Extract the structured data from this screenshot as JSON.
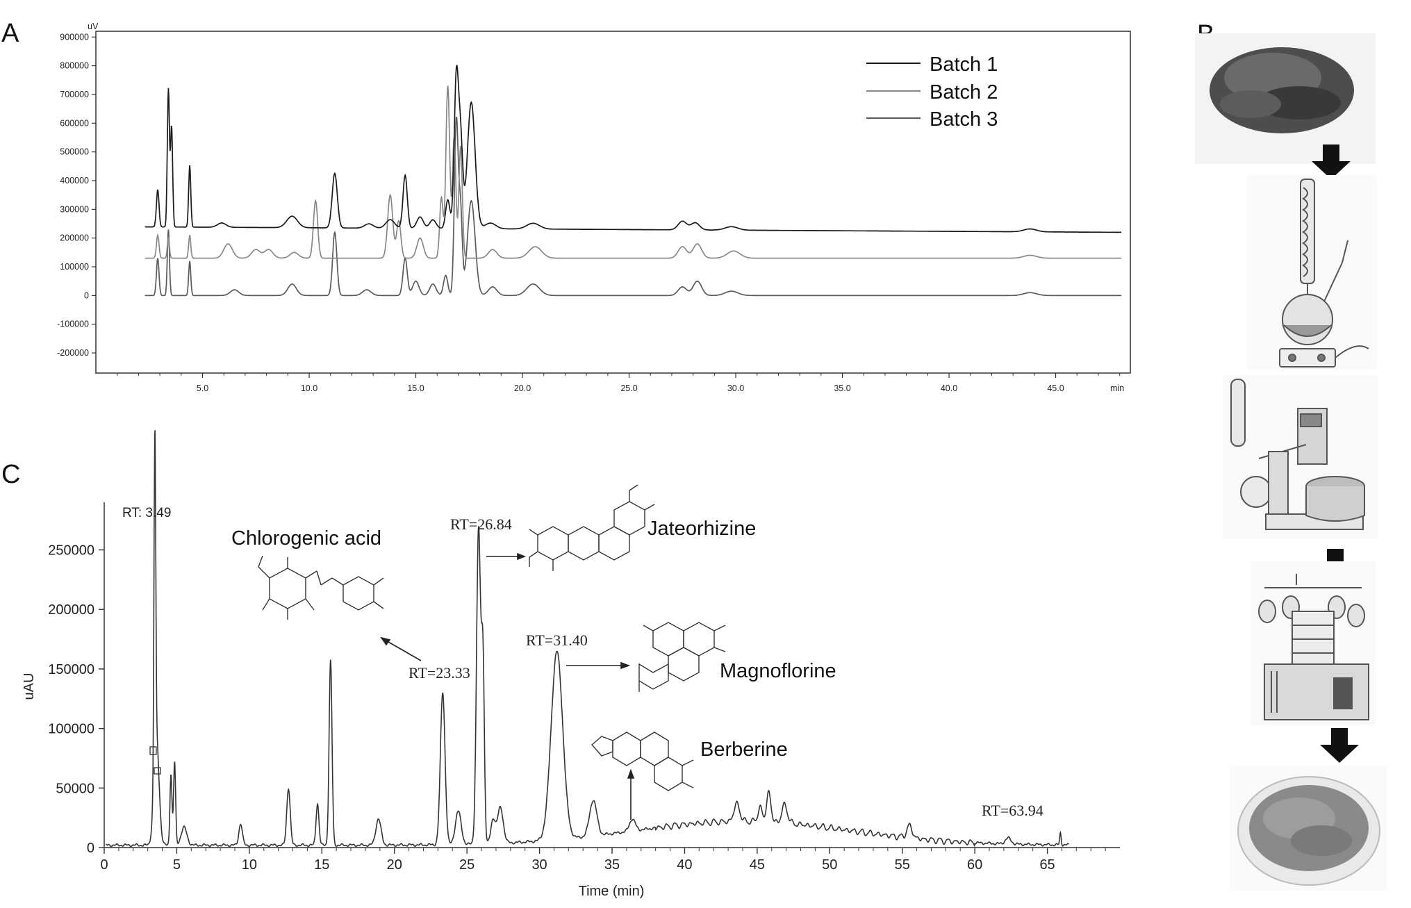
{
  "panels": {
    "a": "A",
    "b": "B",
    "c": "C"
  },
  "chart_data": [
    {
      "type": "line",
      "panel": "A",
      "y_unit": "uV",
      "x_unit": "min",
      "xlim": [
        0,
        48.5
      ],
      "ylim": [
        -270000,
        920000
      ],
      "x_ticks": [
        "5.0",
        "10.0",
        "15.0",
        "20.0",
        "25.0",
        "30.0",
        "35.0",
        "40.0",
        "45.0"
      ],
      "x_tick_values": [
        5,
        10,
        15,
        20,
        25,
        30,
        35,
        40,
        45
      ],
      "y_ticks": [
        "900000",
        "800000",
        "700000",
        "600000",
        "500000",
        "400000",
        "300000",
        "200000",
        "100000",
        "0",
        "-100000",
        "-200000"
      ],
      "y_tick_values": [
        900000,
        800000,
        700000,
        600000,
        500000,
        400000,
        300000,
        200000,
        100000,
        0,
        -100000,
        -200000
      ],
      "series": [
        {
          "name": "Batch 1",
          "color": "#1a1a1a",
          "baseline": 240000,
          "peaks": [
            [
              2.9,
              130000,
              0.06
            ],
            [
              3.4,
              480000,
              0.05
            ],
            [
              3.55,
              350000,
              0.05
            ],
            [
              4.4,
              215000,
              0.05
            ],
            [
              5.9,
              15000,
              0.2
            ],
            [
              9.2,
              40000,
              0.25
            ],
            [
              11.2,
              190000,
              0.12
            ],
            [
              12.8,
              15000,
              0.2
            ],
            [
              13.8,
              30000,
              0.2
            ],
            [
              14.5,
              185000,
              0.1
            ],
            [
              15.2,
              40000,
              0.15
            ],
            [
              15.8,
              30000,
              0.15
            ],
            [
              16.5,
              100000,
              0.1
            ],
            [
              16.9,
              520000,
              0.1
            ],
            [
              17.1,
              300000,
              0.1
            ],
            [
              17.6,
              440000,
              0.18
            ],
            [
              18.5,
              20000,
              0.25
            ],
            [
              20.5,
              20000,
              0.3
            ],
            [
              27.5,
              30000,
              0.2
            ],
            [
              28.1,
              25000,
              0.2
            ],
            [
              29.8,
              12000,
              0.3
            ],
            [
              43.8,
              10000,
              0.3
            ]
          ],
          "drift": -20000
        },
        {
          "name": "Batch 2",
          "color": "#888888",
          "baseline": 130000,
          "peaks": [
            [
              2.9,
              80000,
              0.06
            ],
            [
              3.4,
              70000,
              0.05
            ],
            [
              4.4,
              80000,
              0.05
            ],
            [
              6.2,
              50000,
              0.2
            ],
            [
              7.5,
              30000,
              0.2
            ],
            [
              8.1,
              30000,
              0.2
            ],
            [
              9.3,
              20000,
              0.2
            ],
            [
              10.3,
              200000,
              0.1
            ],
            [
              13.8,
              220000,
              0.12
            ],
            [
              14.2,
              130000,
              0.1
            ],
            [
              15.2,
              70000,
              0.15
            ],
            [
              16.2,
              210000,
              0.08
            ],
            [
              16.5,
              600000,
              0.09
            ],
            [
              16.8,
              420000,
              0.08
            ],
            [
              17.1,
              390000,
              0.08
            ],
            [
              18.6,
              30000,
              0.2
            ],
            [
              20.6,
              40000,
              0.3
            ],
            [
              27.5,
              40000,
              0.2
            ],
            [
              28.2,
              50000,
              0.2
            ],
            [
              29.9,
              25000,
              0.3
            ],
            [
              43.8,
              10000,
              0.3
            ]
          ],
          "drift": 0
        },
        {
          "name": "Batch 3",
          "color": "#5a5a5a",
          "baseline": 0,
          "peaks": [
            [
              2.9,
              130000,
              0.06
            ],
            [
              3.4,
              230000,
              0.05
            ],
            [
              4.4,
              120000,
              0.05
            ],
            [
              6.5,
              20000,
              0.2
            ],
            [
              9.2,
              40000,
              0.2
            ],
            [
              11.2,
              220000,
              0.1
            ],
            [
              12.7,
              20000,
              0.2
            ],
            [
              14.5,
              130000,
              0.1
            ],
            [
              15.0,
              50000,
              0.15
            ],
            [
              15.8,
              40000,
              0.15
            ],
            [
              16.4,
              70000,
              0.1
            ],
            [
              16.9,
              610000,
              0.09
            ],
            [
              17.1,
              280000,
              0.08
            ],
            [
              17.6,
              330000,
              0.18
            ],
            [
              18.6,
              30000,
              0.2
            ],
            [
              20.5,
              40000,
              0.3
            ],
            [
              27.5,
              30000,
              0.2
            ],
            [
              28.2,
              50000,
              0.2
            ],
            [
              29.8,
              15000,
              0.3
            ],
            [
              43.8,
              10000,
              0.3
            ]
          ],
          "drift": 0
        }
      ]
    },
    {
      "type": "line",
      "panel": "C",
      "xlabel": "Time (min)",
      "ylabel": "uAU",
      "xlim": [
        0,
        70
      ],
      "ylim": [
        0,
        290000
      ],
      "x_ticks": [
        0,
        5,
        10,
        15,
        20,
        25,
        30,
        35,
        40,
        45,
        50,
        55,
        60,
        65
      ],
      "y_ticks": [
        0,
        50000,
        100000,
        150000,
        200000,
        250000
      ],
      "series": [
        {
          "name": "",
          "color": "#333333",
          "baseline": 2000,
          "peaks": [
            [
              3.49,
              275000,
              0.06
            ],
            [
              3.6,
              90000,
              0.18
            ],
            [
              4.6,
              60000,
              0.07
            ],
            [
              4.85,
              70000,
              0.07
            ],
            [
              5.5,
              15000,
              0.2
            ],
            [
              9.4,
              18000,
              0.12
            ],
            [
              12.7,
              48000,
              0.12
            ],
            [
              14.7,
              35000,
              0.1
            ],
            [
              15.6,
              155000,
              0.1
            ],
            [
              18.9,
              22000,
              0.18
            ],
            [
              23.33,
              128000,
              0.16
            ],
            [
              24.4,
              28000,
              0.2
            ],
            [
              25.8,
              265000,
              0.14
            ],
            [
              26.1,
              150000,
              0.1
            ],
            [
              26.8,
              20000,
              0.15
            ],
            [
              27.3,
              30000,
              0.2
            ],
            [
              31.2,
              158000,
              0.4
            ],
            [
              33.7,
              30000,
              0.25
            ],
            [
              36.4,
              10000,
              0.2
            ],
            [
              43.6,
              15000,
              0.2
            ],
            [
              45.2,
              12000,
              0.15
            ],
            [
              45.8,
              25000,
              0.15
            ],
            [
              46.9,
              15000,
              0.2
            ],
            [
              55.5,
              10000,
              0.2
            ],
            [
              62.3,
              5000,
              0.2
            ],
            [
              65.9,
              10000,
              0.05
            ]
          ],
          "hump": [
            44,
            7.5,
            20000
          ]
        }
      ],
      "annotations": [
        {
          "label": "RT: 3.49",
          "x": 3.49
        },
        {
          "label": "RT=23.33",
          "x": 23.33,
          "compound": "Chlorogenic acid"
        },
        {
          "label": "RT=26.84",
          "x": 26.84,
          "compound": "Jateorhizine"
        },
        {
          "label": "RT=31.40",
          "x": 31.4,
          "compound": "Magnoflorine"
        },
        {
          "label": "",
          "x": 36.4,
          "compound": "Berberine"
        },
        {
          "label": "RT=63.94",
          "x": 63.94
        }
      ]
    }
  ],
  "compounds": {
    "chlorogenic": "Chlorogenic acid",
    "jateorhizine": "Jateorhizine",
    "magnoflorine": "Magnoflorine",
    "berberine": "Berberine"
  }
}
